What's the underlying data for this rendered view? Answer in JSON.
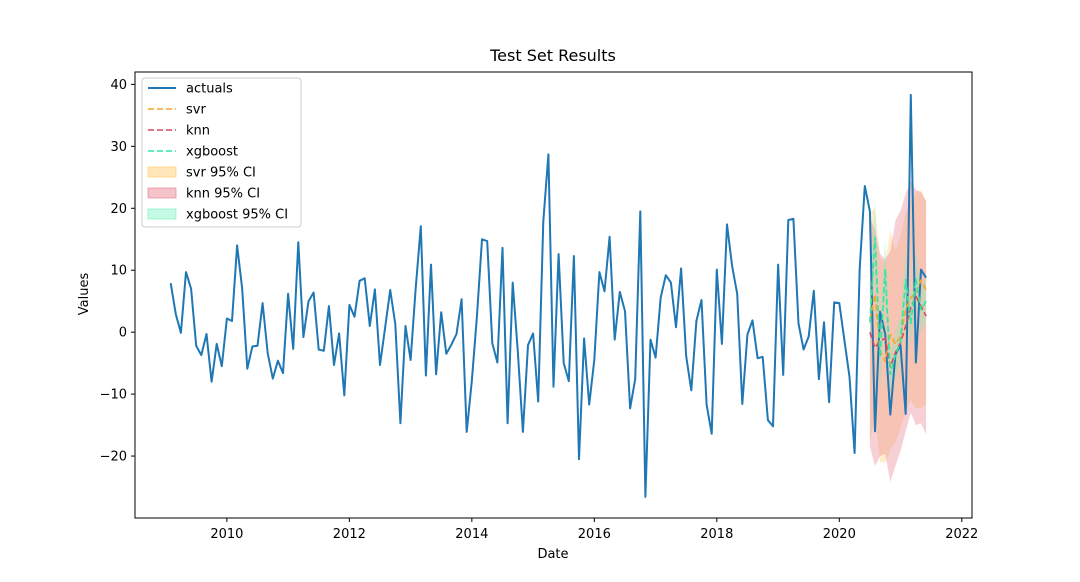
{
  "chart_data": {
    "type": "line",
    "title": "Test Set Results",
    "xlabel": "Date",
    "ylabel": "Values",
    "xlim": [
      "2008-07-01",
      "2022-03-01"
    ],
    "ylim": [
      -30,
      42
    ],
    "x_ticks": [
      "2010",
      "2012",
      "2014",
      "2016",
      "2018",
      "2020",
      "2022"
    ],
    "y_ticks": [
      "40",
      "30",
      "20",
      "10",
      "0",
      "−10",
      "−20"
    ],
    "y_tick_values": [
      40,
      30,
      20,
      10,
      0,
      -10,
      -20
    ],
    "x_tick_values": [
      "2010-01-01",
      "2012-01-01",
      "2014-01-01",
      "2016-01-01",
      "2018-01-01",
      "2020-01-01",
      "2022-01-01"
    ],
    "grid": false,
    "legend_position": "top-left",
    "legend": [
      "actuals",
      "svr",
      "knn",
      "xgboost",
      "svr 95% CI",
      "knn 95% CI",
      "xgboost 95% CI"
    ],
    "series": [
      {
        "name": "actuals",
        "style": "solid",
        "color": "#1f77b4",
        "x": [
          "2009-02-01",
          "2009-03-01",
          "2009-04-01",
          "2009-05-01",
          "2009-06-01",
          "2009-07-01",
          "2009-08-01",
          "2009-09-01",
          "2009-10-01",
          "2009-11-01",
          "2009-12-01",
          "2010-01-01",
          "2010-02-01",
          "2010-03-01",
          "2010-04-01",
          "2010-05-01",
          "2010-06-01",
          "2010-07-01",
          "2010-08-01",
          "2010-09-01",
          "2010-10-01",
          "2010-11-01",
          "2010-12-01",
          "2011-01-01",
          "2011-02-01",
          "2011-03-01",
          "2011-04-01",
          "2011-05-01",
          "2011-06-01",
          "2011-07-01",
          "2011-08-01",
          "2011-09-01",
          "2011-10-01",
          "2011-11-01",
          "2011-12-01",
          "2012-01-01",
          "2012-02-01",
          "2012-03-01",
          "2012-04-01",
          "2012-05-01",
          "2012-06-01",
          "2012-07-01",
          "2012-08-01",
          "2012-09-01",
          "2012-10-01",
          "2012-11-01",
          "2012-12-01",
          "2013-01-01",
          "2013-02-01",
          "2013-03-01",
          "2013-04-01",
          "2013-05-01",
          "2013-06-01",
          "2013-07-01",
          "2013-08-01",
          "2013-09-01",
          "2013-10-01",
          "2013-11-01",
          "2013-12-01",
          "2014-01-01",
          "2014-02-01",
          "2014-03-01",
          "2014-04-01",
          "2014-05-01",
          "2014-06-01",
          "2014-07-01",
          "2014-08-01",
          "2014-09-01",
          "2014-10-01",
          "2014-11-01",
          "2014-12-01",
          "2015-01-01",
          "2015-02-01",
          "2015-03-01",
          "2015-04-01",
          "2015-05-01",
          "2015-06-01",
          "2015-07-01",
          "2015-08-01",
          "2015-09-01",
          "2015-10-01",
          "2015-11-01",
          "2015-12-01",
          "2016-01-01",
          "2016-02-01",
          "2016-03-01",
          "2016-04-01",
          "2016-05-01",
          "2016-06-01",
          "2016-07-01",
          "2016-08-01",
          "2016-09-01",
          "2016-10-01",
          "2016-11-01",
          "2016-12-01",
          "2017-01-01",
          "2017-02-01",
          "2017-03-01",
          "2017-04-01",
          "2017-05-01",
          "2017-06-01",
          "2017-07-01",
          "2017-08-01",
          "2017-09-01",
          "2017-10-01",
          "2017-11-01",
          "2017-12-01",
          "2018-01-01",
          "2018-02-01",
          "2018-03-01",
          "2018-04-01",
          "2018-05-01",
          "2018-06-01",
          "2018-07-01",
          "2018-08-01",
          "2018-09-01",
          "2018-10-01",
          "2018-11-01",
          "2018-12-01",
          "2019-01-01",
          "2019-02-01",
          "2019-03-01",
          "2019-04-01",
          "2019-05-01",
          "2019-06-01",
          "2019-07-01",
          "2019-08-01",
          "2019-09-01",
          "2019-10-01",
          "2019-11-01",
          "2019-12-01",
          "2020-01-01",
          "2020-02-01",
          "2020-03-01",
          "2020-04-01",
          "2020-05-01",
          "2020-06-01",
          "2020-07-01",
          "2020-08-01",
          "2020-09-01",
          "2020-10-01",
          "2020-11-01",
          "2020-12-01",
          "2021-01-01",
          "2021-02-01",
          "2021-03-01",
          "2021-04-01",
          "2021-05-01",
          "2021-06-01"
        ],
        "values": [
          7.9,
          2.9,
          -0.1,
          9.7,
          7.0,
          -2.2,
          -3.7,
          -0.3,
          -8.0,
          -1.9,
          -5.5,
          2.2,
          1.8,
          14.0,
          7.0,
          -5.9,
          -2.3,
          -2.2,
          4.7,
          -3.4,
          -7.5,
          -4.6,
          -6.6,
          6.2,
          -2.7,
          14.5,
          -0.8,
          5.0,
          6.4,
          -2.8,
          -3.0,
          4.2,
          -5.3,
          -0.2,
          -10.2,
          4.4,
          2.5,
          8.3,
          8.7,
          1.0,
          6.9,
          -5.3,
          0.7,
          6.8,
          1.3,
          -14.7,
          1.0,
          -4.5,
          7.1,
          17.1,
          -7.0,
          10.9,
          -6.8,
          3.2,
          -3.5,
          -2.0,
          -0.3,
          5.3,
          -16.1,
          -7.9,
          2.5,
          15.0,
          14.7,
          -1.8,
          -4.9,
          13.6,
          -14.7,
          8.0,
          -3.1,
          -16.1,
          -2.1,
          -0.2,
          -11.2,
          17.9,
          28.7,
          -8.8,
          12.6,
          -5.0,
          -7.9,
          12.3,
          -20.5,
          -1.0,
          -11.7,
          -4.5,
          9.7,
          6.6,
          15.4,
          -1.2,
          6.5,
          3.4,
          -12.3,
          -7.6,
          19.5,
          -26.6,
          -1.2,
          -4.1,
          5.6,
          9.2,
          8.0,
          0.8,
          10.3,
          -3.9,
          -9.4,
          1.8,
          5.2,
          -11.7,
          -16.4,
          10.1,
          -1.9,
          17.4,
          10.7,
          6.2,
          -11.6,
          -0.4,
          1.9,
          -4.2,
          -4.0,
          -14.2,
          -15.2,
          10.9,
          -6.9,
          18.1,
          18.3,
          1.4,
          -2.8,
          -0.7,
          6.7,
          -7.6,
          1.6,
          -11.3,
          4.8,
          4.7,
          -1.3,
          -7.2,
          -19.5,
          10.3,
          23.6,
          19.5,
          -16.0,
          3.3,
          -0.3,
          -13.3,
          -3.6,
          -2.1,
          -13.2,
          38.3,
          -4.9,
          10.1,
          8.8
        ]
      },
      {
        "name": "svr",
        "style": "dashed",
        "color": "#f5a623",
        "x": [
          "2020-07-01",
          "2020-08-01",
          "2020-09-01",
          "2020-10-01",
          "2020-11-01",
          "2020-12-01",
          "2021-01-01",
          "2021-02-01",
          "2021-03-01",
          "2021-04-01",
          "2021-05-01",
          "2021-06-01"
        ],
        "values": [
          2.0,
          6.1,
          -3.1,
          -4.7,
          -0.4,
          -1.9,
          -0.7,
          3.6,
          5.6,
          6.3,
          8.4,
          6.8
        ]
      },
      {
        "name": "knn",
        "style": "dashed",
        "color": "#d64a5e",
        "x": [
          "2020-07-01",
          "2020-08-01",
          "2020-09-01",
          "2020-10-01",
          "2020-11-01",
          "2020-12-01",
          "2021-01-01",
          "2021-02-01",
          "2021-03-01",
          "2021-04-01",
          "2021-05-01",
          "2021-06-01"
        ],
        "values": [
          0.0,
          -2.5,
          -1.4,
          -1.0,
          -5.6,
          -3.3,
          -1.7,
          1.0,
          4.0,
          5.8,
          4.2,
          2.6
        ]
      },
      {
        "name": "xgboost",
        "style": "dashed",
        "color": "#2de8a0",
        "x": [
          "2020-07-01",
          "2020-08-01",
          "2020-09-01",
          "2020-10-01",
          "2020-11-01",
          "2020-12-01",
          "2021-01-01",
          "2021-02-01",
          "2021-03-01",
          "2021-04-01",
          "2021-05-01",
          "2021-06-01"
        ],
        "values": [
          1.6,
          15.3,
          -4.1,
          10.2,
          -6.8,
          -3.7,
          -1.5,
          8.5,
          1.4,
          8.6,
          3.6,
          5.0
        ]
      }
    ],
    "bands": [
      {
        "name": "svr 95% CI",
        "color": "#ffc966",
        "opacity": 0.35,
        "x": [
          "2020-07-01",
          "2020-08-01",
          "2020-09-01",
          "2020-10-01",
          "2020-11-01",
          "2020-12-01",
          "2021-01-01",
          "2021-02-01",
          "2021-03-01",
          "2021-04-01",
          "2021-05-01",
          "2021-06-01"
        ],
        "lower": [
          -17.6,
          -13.5,
          -21.0,
          -21.1,
          -19.0,
          -17.8,
          -15.5,
          -13.0,
          -11.0,
          -12.3,
          -12.3,
          -11.6
        ],
        "upper": [
          19.0,
          20.2,
          12.0,
          11.3,
          16.4,
          13.3,
          15.4,
          19.3,
          21.2,
          22.5,
          23.0,
          21.2
        ]
      },
      {
        "name": "knn 95% CI",
        "color": "#e8798a",
        "opacity": 0.35,
        "x": [
          "2020-07-01",
          "2020-08-01",
          "2020-09-01",
          "2020-10-01",
          "2020-11-01",
          "2020-12-01",
          "2021-01-01",
          "2021-02-01",
          "2021-03-01",
          "2021-04-01",
          "2021-05-01",
          "2021-06-01"
        ],
        "lower": [
          -18.5,
          -21.6,
          -20.0,
          -19.6,
          -24.2,
          -21.6,
          -19.2,
          -16.0,
          -13.0,
          -15.0,
          -14.7,
          -16.5
        ],
        "upper": [
          18.5,
          16.5,
          12.7,
          11.8,
          13.0,
          18.0,
          19.6,
          22.4,
          24.3,
          23.0,
          22.6,
          21.1
        ]
      },
      {
        "name": "xgboost 95% CI",
        "color": "#6ef2bc",
        "opacity": 0.3,
        "x": [
          "2020-07-01",
          "2020-08-01",
          "2020-09-01",
          "2020-10-01",
          "2020-11-01",
          "2020-12-01",
          "2021-01-01",
          "2021-02-01",
          "2021-03-01",
          "2021-04-01",
          "2021-05-01",
          "2021-06-01"
        ],
        "lower": [
          -4.5,
          9.0,
          -9.5,
          5.0,
          -10.5,
          -7.5,
          -5.0,
          4.0,
          -2.5,
          4.0,
          0.0,
          1.5
        ],
        "upper": [
          7.5,
          21.0,
          1.5,
          15.5,
          -3.0,
          0.0,
          2.5,
          13.0,
          5.5,
          13.0,
          7.5,
          8.5
        ]
      }
    ]
  }
}
